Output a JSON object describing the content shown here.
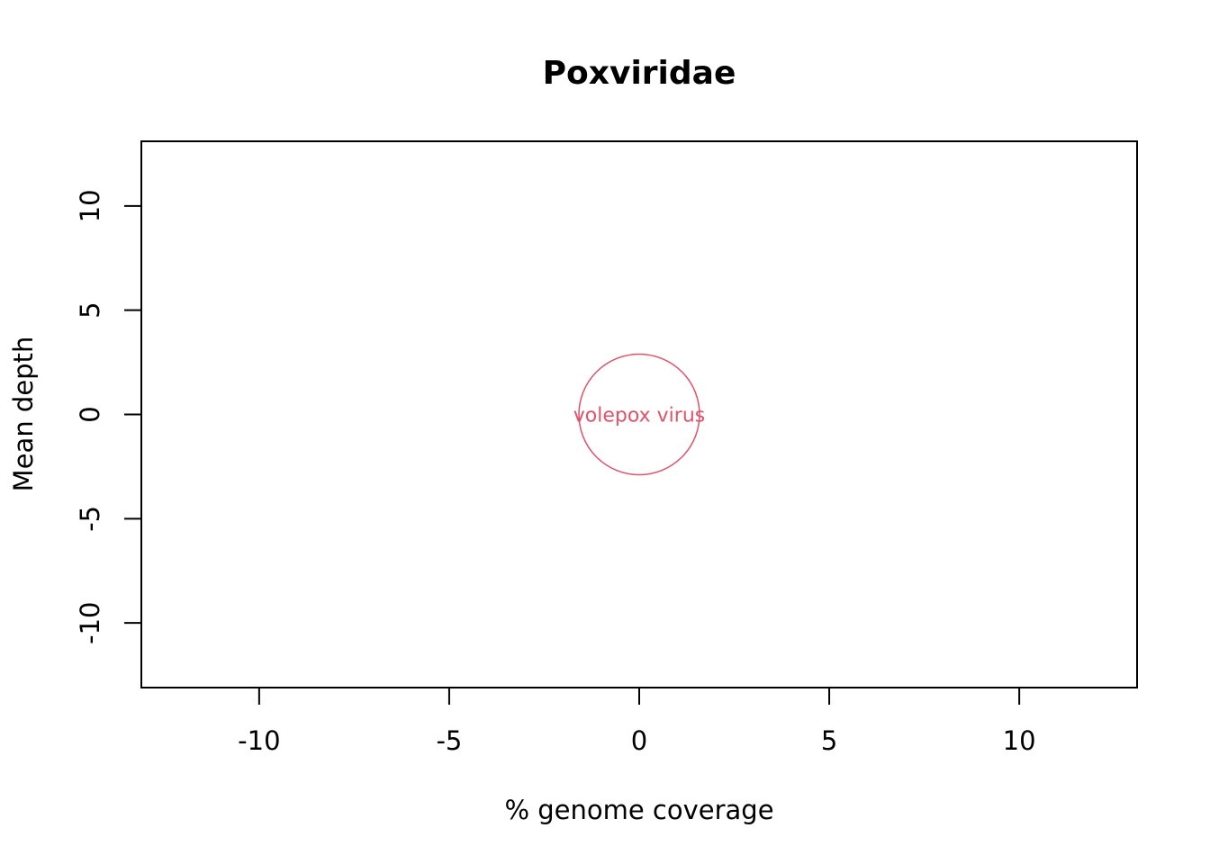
{
  "chart_data": {
    "type": "scatter",
    "title": "Poxviridae",
    "xlabel": "% genome coverage",
    "ylabel": "Mean depth",
    "xlim": [
      -13.1,
      13.1
    ],
    "ylim": [
      -13.1,
      13.1
    ],
    "xticks": [
      -10,
      -5,
      0,
      5,
      10
    ],
    "yticks": [
      -10,
      -5,
      0,
      5,
      10
    ],
    "grid": false,
    "point_color": "#DF536B",
    "points": [
      {
        "x": 0,
        "y": 0,
        "label": "volepox virus"
      }
    ]
  }
}
